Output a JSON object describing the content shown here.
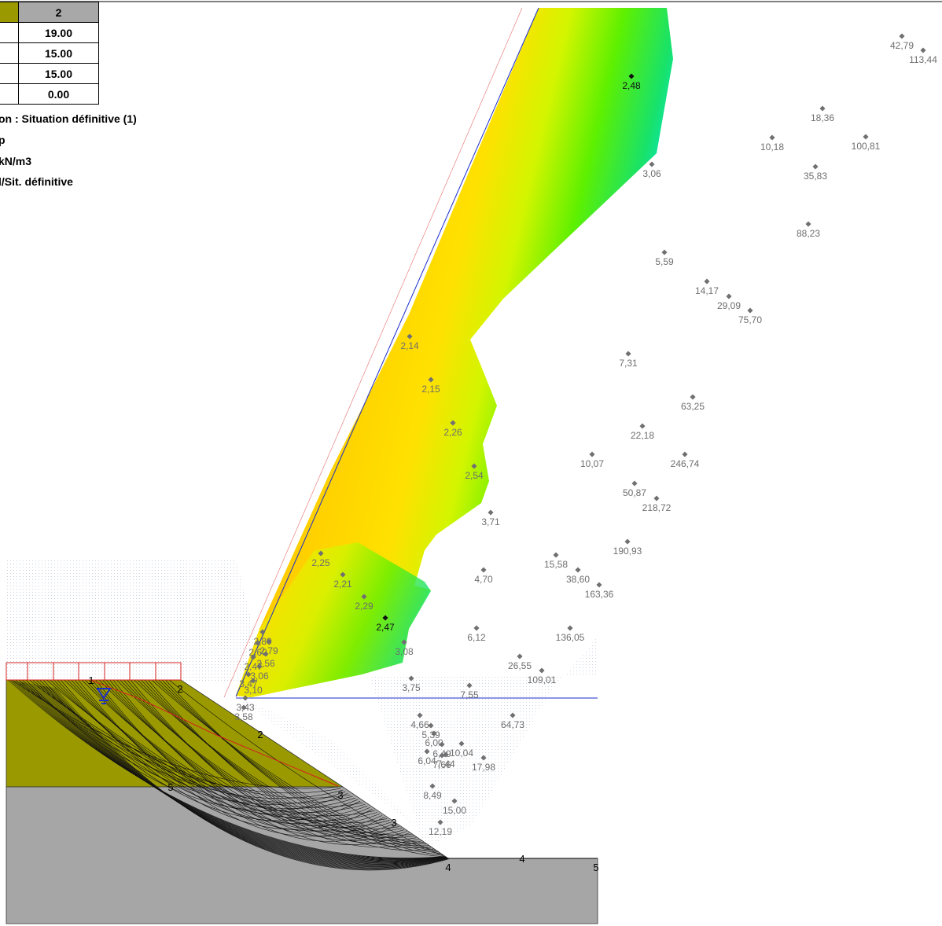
{
  "table": {
    "header": "2",
    "rows": [
      "19.00",
      "15.00",
      "15.00",
      "0.00"
    ],
    "swatch_color": "#9a9a00"
  },
  "info_lines": [
    "on : Situation définitive (1)",
    "p",
    "kN/m3",
    "l/Sit. définitive"
  ],
  "factors_upper": [
    "42,79",
    "113,44",
    "2,48",
    "18,36",
    "10,18",
    "100,81",
    "3,06",
    "35,83",
    "88,23",
    "5,59",
    "14,17",
    "29,09",
    "75,70",
    "2,14",
    "7,31",
    "2,15",
    "63,25",
    "2,26",
    "22,18",
    "10,07",
    "246,74",
    "2,54",
    "50,87",
    "218,72",
    "3,71",
    "190,93",
    "2,25",
    "15,58",
    "38,60",
    "4,70",
    "2,21",
    "163,36",
    "2,29",
    "2,47",
    "6,12",
    "136,05",
    "3,08",
    "26,55",
    "109,01",
    "3,75",
    "7,55"
  ],
  "factors_lower": [
    "4,66",
    "64,73",
    "5,39",
    "6,00",
    "6,49",
    "10,04",
    "6,04",
    "7,44",
    "7,66",
    "17,98",
    "8,49",
    "15,00",
    "12,19"
  ],
  "factors_cluster": [
    "2,80",
    "2,79",
    "2,60",
    "2,56",
    "2,47",
    "3,06",
    "3,47",
    "3,10",
    "3,43",
    "3,58"
  ],
  "layer_labels": [
    "1",
    "2",
    "2",
    "5",
    "3",
    "3",
    "4",
    "4",
    "5"
  ],
  "colors": {
    "soil_layer_1": "#9a9a00",
    "soil_layer_2": "#a6a6a6",
    "water_line": "#1a2ccc",
    "load_frame": "#d62020"
  }
}
